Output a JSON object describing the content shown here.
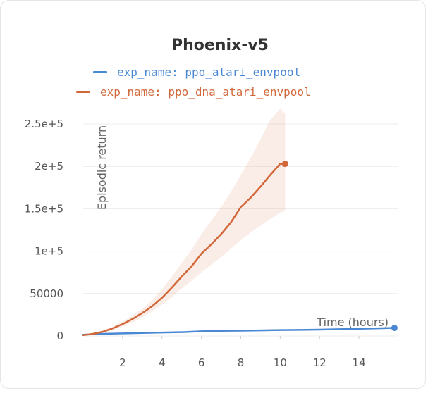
{
  "chart_data": {
    "type": "line",
    "title": "Phoenix-v5",
    "xlabel": "Time (hours)",
    "ylabel": "Episodic return",
    "xlim": [
      0,
      16
    ],
    "ylim": [
      0,
      250000
    ],
    "x_ticks": [
      2,
      4,
      6,
      8,
      10,
      12,
      14
    ],
    "x_tick_labels": [
      "2",
      "4",
      "6",
      "8",
      "10",
      "12",
      "14"
    ],
    "y_ticks": [
      0,
      50000,
      100000,
      150000,
      200000,
      250000
    ],
    "y_tick_labels": [
      "0",
      "50000",
      "1e+5",
      "1.5e+5",
      "2e+5",
      "2.5e+5"
    ],
    "grid": true,
    "legend_position": "top",
    "series": [
      {
        "name": "exp_name: ppo_atari_envpool",
        "color": "#4a88d4",
        "x": [
          0,
          1,
          2,
          3,
          4,
          5,
          6,
          7,
          8,
          9,
          10,
          11,
          12,
          13,
          14,
          15,
          15.8
        ],
        "y": [
          1500,
          2500,
          3000,
          3500,
          4000,
          4500,
          5500,
          6000,
          6200,
          6500,
          7000,
          7200,
          7500,
          8000,
          8500,
          9000,
          9500
        ]
      },
      {
        "name": "exp_name: ppo_dna_atari_envpool",
        "color": "#d2683a",
        "x": [
          0,
          0.5,
          1,
          1.5,
          2,
          2.5,
          3,
          3.5,
          4,
          4.5,
          5,
          5.5,
          6,
          6.5,
          7,
          7.5,
          8,
          8.5,
          9,
          9.5,
          10,
          10.25
        ],
        "y": [
          1000,
          2500,
          5000,
          9000,
          14000,
          20000,
          27000,
          35000,
          45000,
          57000,
          70000,
          82000,
          97000,
          108000,
          120000,
          134000,
          152000,
          163000,
          176000,
          190000,
          203000,
          203000
        ],
        "band_low": [
          500,
          1500,
          3500,
          7000,
          11000,
          16000,
          22000,
          29000,
          37000,
          46000,
          56000,
          65000,
          75000,
          84000,
          93000,
          103000,
          113000,
          122000,
          130000,
          138000,
          145000,
          148000
        ],
        "band_high": [
          1500,
          3500,
          6500,
          11000,
          17000,
          24000,
          32000,
          42000,
          55000,
          70000,
          86000,
          102000,
          120000,
          136000,
          152000,
          170000,
          190000,
          210000,
          232000,
          255000,
          268000,
          262000
        ]
      }
    ]
  }
}
